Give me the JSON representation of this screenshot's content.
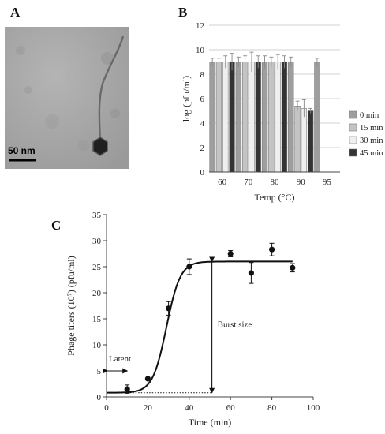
{
  "panels": {
    "a": {
      "letter": "A",
      "scale_bar_label": "50 nm"
    },
    "b": {
      "letter": "B"
    },
    "c": {
      "letter": "C"
    }
  },
  "chart_data": [
    {
      "type": "bar",
      "panel": "B",
      "xlabel": "Temp (°C)",
      "ylabel": "log (pfu/ml)",
      "ylim": [
        0,
        12
      ],
      "yticks": [
        0,
        2,
        4,
        6,
        8,
        10,
        12
      ],
      "grid": true,
      "legend_position": "right",
      "categories": [
        "60",
        "70",
        "80",
        "90",
        "95"
      ],
      "series": [
        {
          "name": "0 min",
          "color": "#9e9e9e",
          "values": [
            9.0,
            9.0,
            9.0,
            9.0,
            9.0
          ],
          "errors": [
            0.3,
            0.4,
            0.5,
            0.4,
            0.3
          ]
        },
        {
          "name": "15 min",
          "color": "#c4c4c4",
          "values": [
            9.0,
            9.0,
            9.0,
            5.4,
            null
          ],
          "errors": [
            0.3,
            0.5,
            0.4,
            0.4,
            null
          ]
        },
        {
          "name": "30 min",
          "color": "#efefef",
          "values": [
            9.0,
            9.0,
            9.0,
            5.2,
            null
          ],
          "errors": [
            0.5,
            0.8,
            0.6,
            0.7,
            null
          ]
        },
        {
          "name": "45 min",
          "color": "#333333",
          "values": [
            9.0,
            9.0,
            9.0,
            5.0,
            null
          ],
          "errors": [
            0.7,
            0.5,
            0.5,
            0.2,
            null
          ]
        }
      ]
    },
    {
      "type": "scatter",
      "panel": "C",
      "xlabel": "Time (min)",
      "ylabel": "Phage titers (10⁷) (pfu/ml)",
      "xlim": [
        0,
        100
      ],
      "ylim": [
        0,
        35
      ],
      "xticks": [
        0,
        20,
        40,
        60,
        80,
        100
      ],
      "yticks": [
        0,
        5,
        10,
        15,
        20,
        25,
        30,
        35
      ],
      "grid": false,
      "points": [
        {
          "x": 10,
          "y": 1.5,
          "err": 0.8
        },
        {
          "x": 20,
          "y": 3.5,
          "err": 0
        },
        {
          "x": 30,
          "y": 17.0,
          "err": 1.3
        },
        {
          "x": 40,
          "y": 25.0,
          "err": 1.5
        },
        {
          "x": 60,
          "y": 27.5,
          "err": 0.6
        },
        {
          "x": 70,
          "y": 23.8,
          "err": 2.0
        },
        {
          "x": 80,
          "y": 28.3,
          "err": 1.2
        },
        {
          "x": 90,
          "y": 24.8,
          "err": 0.8
        }
      ],
      "fit_curve": {
        "baseline": 0.8,
        "plateau": 26.0,
        "midpoint": 29,
        "steepness": 0.3,
        "x_range": [
          0,
          90
        ]
      },
      "annotations": {
        "latent_label": "Latent",
        "latent_range": [
          0,
          10
        ],
        "latent_y": 5.0,
        "burst_label": "Burst size",
        "burst_x": 51,
        "burst_y_range": [
          0.8,
          26.0
        ]
      }
    }
  ]
}
